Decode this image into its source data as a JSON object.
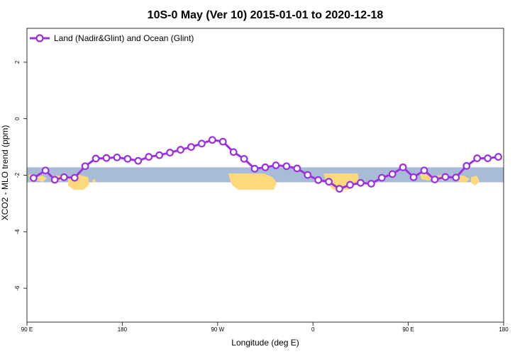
{
  "chart_data": {
    "type": "line",
    "title": "10S-0 May (Ver 10)   2015-01-01 to 2020-12-18",
    "xlabel": "Longitude (deg E)",
    "ylabel": "XCO2 - MLO trend (ppm)",
    "xlim": [
      90,
      450
    ],
    "ylim": [
      -7.2,
      3.2
    ],
    "x_ticks": [
      {
        "value": 90,
        "label": "90 E"
      },
      {
        "value": 162,
        "label": "180"
      },
      {
        "value": 234,
        "label": "90 W"
      },
      {
        "value": 306,
        "label": "0"
      },
      {
        "value": 378,
        "label": "90 E"
      },
      {
        "value": 450,
        "label": "180"
      }
    ],
    "y_ticks": [
      {
        "value": 2,
        "label": "2"
      },
      {
        "value": 0,
        "label": "0"
      },
      {
        "value": -2,
        "label": "-2"
      },
      {
        "value": -4,
        "label": "-4"
      },
      {
        "value": -6,
        "label": "-6"
      }
    ],
    "map_band": {
      "y_top": -1.72,
      "y_bottom": -2.25,
      "ocean_color": "#a8bcd8",
      "land_color": "#fcd97a"
    },
    "series": [
      {
        "name": "Land (Nadir&Glint) and Ocean (Glint)",
        "color": "#9b30e0",
        "x": [
          95,
          104,
          111,
          118,
          126,
          134,
          142,
          150,
          158,
          166,
          174,
          182,
          190,
          198,
          206,
          214,
          222,
          230,
          238,
          246,
          254,
          262,
          270,
          278,
          286,
          294,
          302,
          310,
          318,
          326,
          334,
          342,
          350,
          358,
          366,
          374,
          382,
          390,
          398,
          406,
          414,
          422,
          430,
          438,
          446
        ],
        "y": [
          -2.1,
          -1.83,
          -2.16,
          -2.07,
          -2.09,
          -1.68,
          -1.41,
          -1.39,
          -1.37,
          -1.42,
          -1.49,
          -1.35,
          -1.29,
          -1.2,
          -1.1,
          -1.0,
          -0.88,
          -0.75,
          -0.81,
          -1.18,
          -1.42,
          -1.77,
          -1.72,
          -1.65,
          -1.68,
          -1.76,
          -1.99,
          -2.17,
          -2.23,
          -2.48,
          -2.34,
          -2.27,
          -2.3,
          -2.09,
          -1.96,
          -1.72,
          -2.07,
          -1.83,
          -2.15,
          -2.06,
          -2.08,
          -1.67,
          -1.4,
          -1.4,
          -1.35
        ]
      }
    ]
  }
}
